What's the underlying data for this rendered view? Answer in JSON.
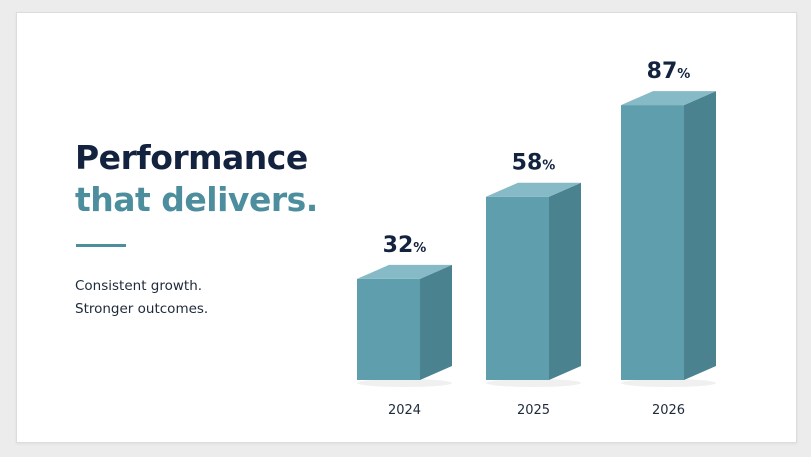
{
  "slide": {
    "headline_line1": "Performance",
    "headline_line2": "that delivers.",
    "tagline_line1": "Consistent growth.",
    "tagline_line2": "Stronger outcomes."
  },
  "colors": {
    "navy": "#13233f",
    "accent": "#4d8e9e",
    "bar_front": "#5f9eac",
    "bar_side": "#4a8290",
    "bar_top": "#86bac6"
  },
  "chart_data": {
    "type": "bar",
    "categories": [
      "2024",
      "2025",
      "2026"
    ],
    "values": [
      32,
      58,
      87
    ],
    "value_labels": [
      "32%",
      "58%",
      "87%"
    ],
    "value_suffix": "%",
    "title": "",
    "xlabel": "",
    "ylabel": "",
    "ylim": [
      0,
      100
    ],
    "grid": false,
    "legend": "none",
    "style": "3d-bar"
  }
}
